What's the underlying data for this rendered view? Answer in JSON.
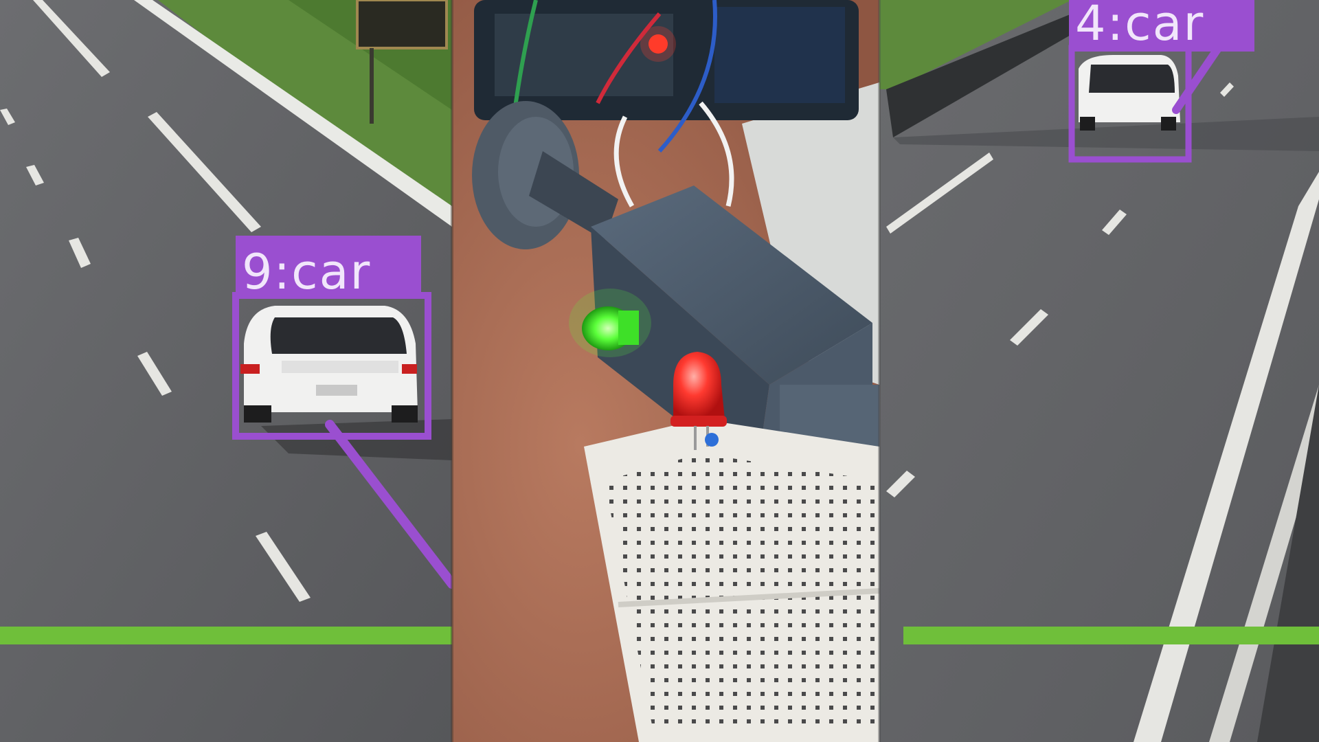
{
  "panels": {
    "left": {
      "kind": "traffic-camera-view"
    },
    "center": {
      "kind": "breadboard-traffic-light"
    },
    "right": {
      "kind": "traffic-camera-view"
    }
  },
  "detections": [
    {
      "id": "9",
      "label": "9:car",
      "panel": "left"
    },
    {
      "id": "4",
      "label": "4:car",
      "panel": "right"
    }
  ],
  "counting_line": {
    "color": "#6fbf3a"
  },
  "colors": {
    "detection_box": "#9a4fd0",
    "detection_text": "#f1e6fb",
    "road": "#5f6063",
    "grass": "#5d8a3c",
    "led_green": "#5bff3a",
    "led_red": "#ff2a2a",
    "housing": "#4a5868",
    "skin": "#a86a52",
    "breadboard": "#eceae4"
  }
}
